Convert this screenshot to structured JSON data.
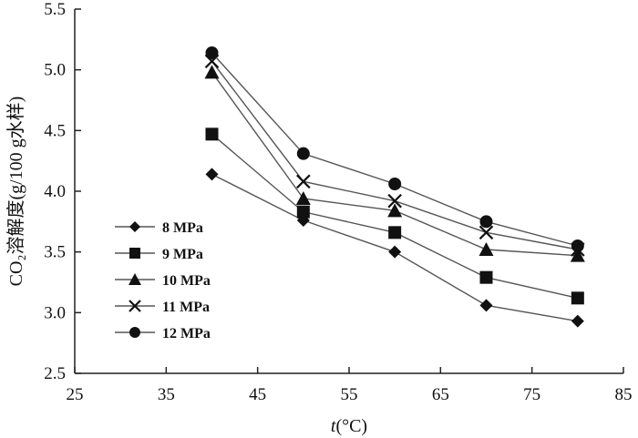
{
  "chart_data": {
    "type": "line",
    "xlabel_var": "t",
    "xlabel_unit": "(°C)",
    "ylabel": "CO₂溶解度(g/100  g水样)",
    "xlim": [
      25,
      85
    ],
    "ylim": [
      2.5,
      5.5
    ],
    "xticks": [
      25,
      35,
      45,
      55,
      65,
      75,
      85
    ],
    "yticks": [
      "2.5",
      "3.0",
      "3.5",
      "4.0",
      "4.5",
      "5.0",
      "5.5"
    ],
    "grid": false,
    "legend_position": "left",
    "x": [
      40,
      50,
      60,
      70,
      80
    ],
    "series": [
      {
        "name": "8 MPa",
        "marker": "diamond",
        "values": [
          4.14,
          3.76,
          3.5,
          3.06,
          2.93
        ]
      },
      {
        "name": "9 MPa",
        "marker": "square",
        "values": [
          4.47,
          3.83,
          3.66,
          3.29,
          3.12
        ]
      },
      {
        "name": "10 MPa",
        "marker": "triangle",
        "values": [
          4.98,
          3.94,
          3.84,
          3.52,
          3.47
        ]
      },
      {
        "name": "11 MPa",
        "marker": "x",
        "values": [
          5.07,
          4.08,
          3.92,
          3.66,
          3.52
        ]
      },
      {
        "name": "12 MPa",
        "marker": "circle",
        "values": [
          5.14,
          4.31,
          4.06,
          3.75,
          3.55
        ]
      }
    ],
    "colors": {
      "line": "#555555",
      "marker": "#111111"
    }
  }
}
